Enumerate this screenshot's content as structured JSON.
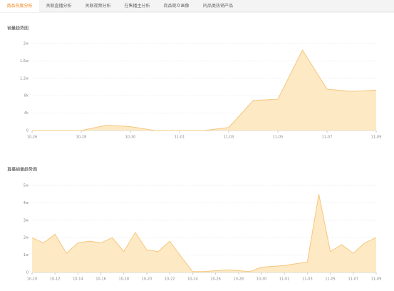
{
  "tabs": [
    "商品热度分析",
    "关联直播分析",
    "关联视频分析",
    "在售播主分析",
    "商品观众画像",
    "同品类热销产品"
  ],
  "chart_data": [
    {
      "type": "area",
      "title": "销量趋势图",
      "categories": [
        "10-26",
        null,
        "10-28",
        null,
        "10-30",
        null,
        "11-01",
        null,
        "11-03",
        null,
        "11-05",
        null,
        "11-07",
        null,
        "11-09"
      ],
      "series": [
        {
          "name": null,
          "color": "#f5c77e",
          "values": [
            0,
            0,
            0,
            1200,
            900,
            0,
            0,
            0,
            700,
            6900,
            7200,
            18500,
            9500,
            9000,
            9300
          ]
        }
      ],
      "ylim": [
        0,
        20000
      ],
      "yticks": [
        0,
        {
          "value": 4000,
          "label": "4k"
        },
        {
          "value": 8000,
          "label": "8k"
        },
        {
          "value": 12000,
          "label": "1.2w"
        },
        {
          "value": 16000,
          "label": "1.6w"
        },
        {
          "value": 20000,
          "label": "2w"
        }
      ],
      "grid": true
    },
    {
      "type": "area",
      "title": "直播销量趋势图",
      "categories": [
        "10-10",
        null,
        "10-12",
        null,
        "10-14",
        null,
        "10-16",
        null,
        "10-18",
        null,
        "10-20",
        null,
        "10-22",
        null,
        "10-24",
        null,
        "10-26",
        null,
        "10-28",
        null,
        "10-30",
        null,
        "11-01",
        null,
        "11-03",
        null,
        "11-05",
        null,
        "11-07",
        null,
        "11-09"
      ],
      "series": [
        {
          "name": null,
          "color": "#f5c77e",
          "values": [
            20000,
            17000,
            22000,
            11000,
            17000,
            18000,
            17000,
            20000,
            12000,
            23000,
            13000,
            12000,
            18000,
            9000,
            500,
            500,
            1000,
            1500,
            1000,
            500,
            3000,
            3500,
            4000,
            5000,
            6000,
            45000,
            12000,
            16000,
            11000,
            17000,
            20000
          ]
        }
      ],
      "ylim": [
        0,
        50000
      ],
      "yticks": [
        0,
        {
          "value": 10000,
          "label": "1w"
        },
        {
          "value": 20000,
          "label": "2w"
        },
        {
          "value": 30000,
          "label": "3w"
        },
        {
          "value": 40000,
          "label": "4w"
        },
        {
          "value": 50000,
          "label": "5w"
        }
      ],
      "grid": true
    }
  ]
}
